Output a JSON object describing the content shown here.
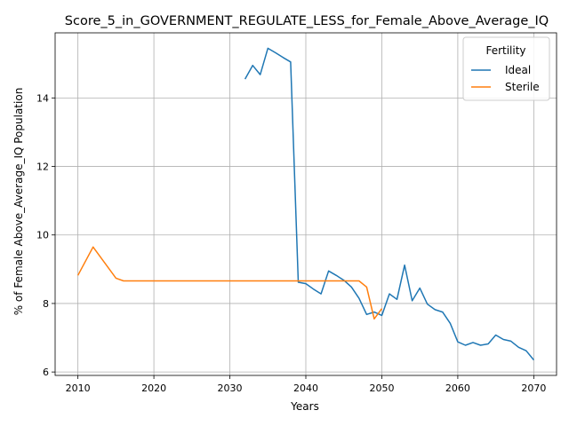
{
  "chart_data": {
    "type": "line",
    "title": "Score_5_in_GOVERNMENT_REGULATE_LESS_for_Female_Above_Average_IQ",
    "xlabel": "Years",
    "ylabel": "% of Female Above_Average_IQ Population",
    "xlim": [
      2007,
      2073
    ],
    "ylim": [
      5.9,
      15.9
    ],
    "xticks": [
      2010,
      2020,
      2030,
      2040,
      2050,
      2060,
      2070
    ],
    "yticks": [
      6,
      8,
      10,
      12,
      14
    ],
    "grid": true,
    "legend": {
      "title": "Fertility",
      "placement": "top-right"
    },
    "colors": {
      "Ideal": "#1f77b4",
      "Sterile": "#ff7f0e"
    },
    "series": [
      {
        "name": "Ideal",
        "x": [
          2032,
          2033,
          2034,
          2035,
          2036,
          2037,
          2038,
          2039,
          2040,
          2041,
          2042,
          2043,
          2044,
          2045,
          2046,
          2047,
          2048,
          2049,
          2050,
          2051,
          2052,
          2053,
          2054,
          2055,
          2056,
          2057,
          2058,
          2059,
          2060,
          2061,
          2062,
          2063,
          2064,
          2065,
          2066,
          2067,
          2068,
          2069,
          2070
        ],
        "y": [
          14.55,
          14.95,
          14.68,
          15.45,
          15.32,
          15.18,
          15.05,
          8.62,
          8.58,
          8.42,
          8.28,
          8.95,
          8.82,
          8.68,
          8.48,
          8.15,
          7.68,
          7.75,
          7.65,
          8.28,
          8.12,
          9.12,
          8.08,
          8.45,
          7.98,
          7.82,
          7.75,
          7.42,
          6.88,
          6.78,
          6.86,
          6.78,
          6.82,
          7.08,
          6.95,
          6.9,
          6.72,
          6.62,
          6.35
        ]
      },
      {
        "name": "Sterile",
        "x": [
          2010,
          2012,
          2015,
          2016,
          2020,
          2025,
          2030,
          2035,
          2040,
          2045,
          2047,
          2048,
          2049,
          2050
        ],
        "y": [
          8.82,
          9.65,
          8.74,
          8.66,
          8.66,
          8.66,
          8.66,
          8.66,
          8.66,
          8.66,
          8.66,
          8.48,
          7.55,
          7.85
        ]
      }
    ]
  }
}
